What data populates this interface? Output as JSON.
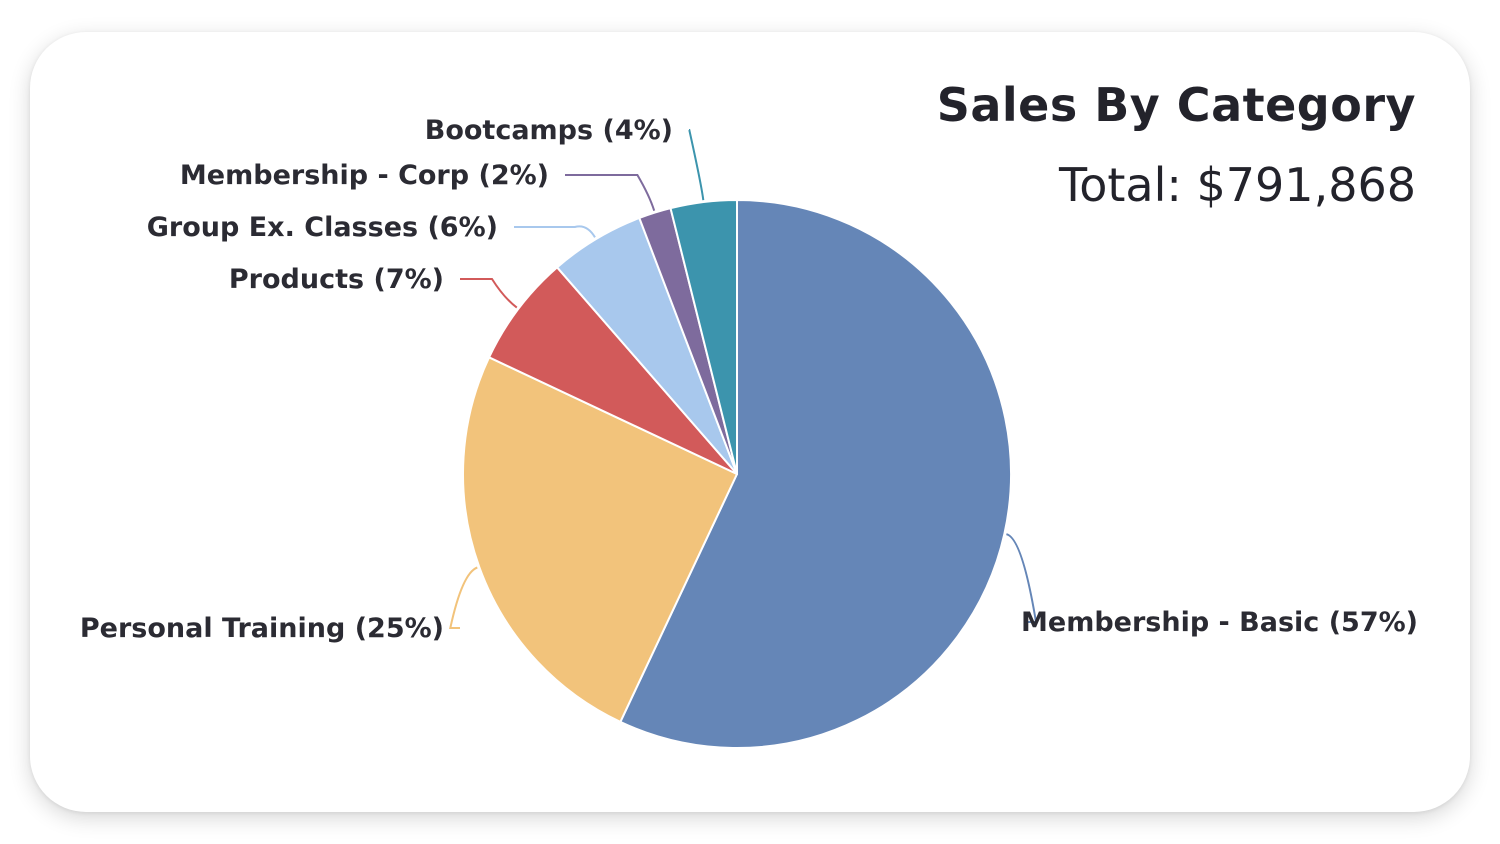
{
  "chart_data": {
    "type": "pie",
    "title": "Sales By Category",
    "subtitle_label": "Total:",
    "subtitle_value": "$791,868",
    "slices": [
      {
        "label": "Membership - Basic",
        "pct_label": "(57%)",
        "value": 57.0,
        "color": "#6586b7"
      },
      {
        "label": "Personal Training",
        "pct_label": "(25%)",
        "value": 25.0,
        "color": "#f2c37b"
      },
      {
        "label": "Products",
        "pct_label": "(7%)",
        "value": 6.6,
        "color": "#d25a5a"
      },
      {
        "label": "Group Ex. Classes",
        "pct_label": "(6%)",
        "value": 5.6,
        "color": "#a8c8ed"
      },
      {
        "label": "Membership - Corp",
        "pct_label": "(2%)",
        "value": 1.9,
        "color": "#7e6b9d"
      },
      {
        "label": "Bootcamps",
        "pct_label": "(4%)",
        "value": 3.9,
        "color": "#3c94ad"
      }
    ]
  }
}
